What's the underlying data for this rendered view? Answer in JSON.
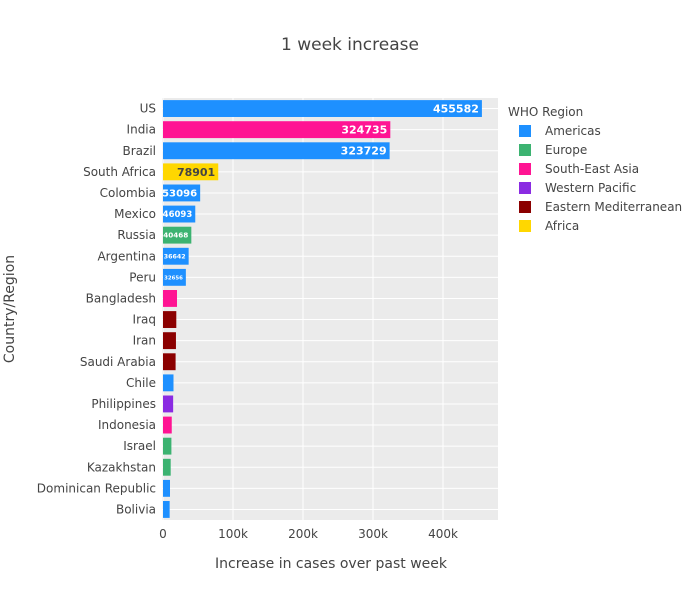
{
  "chart_data": {
    "type": "bar",
    "orientation": "horizontal",
    "title": "1 week increase",
    "xlabel": "Increase in cases over past week",
    "ylabel": "Country/Region",
    "xlim": [
      0,
      480000
    ],
    "xticks": [
      0,
      100000,
      200000,
      300000,
      400000
    ],
    "xtick_labels": [
      "0",
      "100k",
      "200k",
      "300k",
      "400k"
    ],
    "grid": true,
    "legend": {
      "title": "WHO Region",
      "placement": "right",
      "items": [
        {
          "name": "Americas",
          "color": "#1e90ff"
        },
        {
          "name": "Europe",
          "color": "#3cb371"
        },
        {
          "name": "South-East Asia",
          "color": "#ff1493"
        },
        {
          "name": "Western Pacific",
          "color": "#8a2be2"
        },
        {
          "name": "Eastern Mediterranean",
          "color": "#8b0000"
        },
        {
          "name": "Africa",
          "color": "#ffd700"
        }
      ]
    },
    "bars": [
      {
        "country": "US",
        "value": 455582,
        "region": "Americas",
        "label": "455582"
      },
      {
        "country": "India",
        "value": 324735,
        "region": "South-East Asia",
        "label": "324735"
      },
      {
        "country": "Brazil",
        "value": 323729,
        "region": "Americas",
        "label": "323729"
      },
      {
        "country": "South Africa",
        "value": 78901,
        "region": "Africa",
        "label": "78901"
      },
      {
        "country": "Colombia",
        "value": 53096,
        "region": "Americas",
        "label": "53096"
      },
      {
        "country": "Mexico",
        "value": 46093,
        "region": "Americas",
        "label": "46093"
      },
      {
        "country": "Russia",
        "value": 40468,
        "region": "Europe",
        "label": "40468"
      },
      {
        "country": "Argentina",
        "value": 36642,
        "region": "Americas",
        "label": "36642"
      },
      {
        "country": "Peru",
        "value": 32656,
        "region": "Americas",
        "label": "32656"
      },
      {
        "country": "Bangladesh",
        "value": 20000,
        "region": "South-East Asia",
        "label": ""
      },
      {
        "country": "Iraq",
        "value": 19000,
        "region": "Eastern Mediterranean",
        "label": ""
      },
      {
        "country": "Iran",
        "value": 18500,
        "region": "Eastern Mediterranean",
        "label": ""
      },
      {
        "country": "Saudi Arabia",
        "value": 18000,
        "region": "Eastern Mediterranean",
        "label": ""
      },
      {
        "country": "Chile",
        "value": 15000,
        "region": "Americas",
        "label": ""
      },
      {
        "country": "Philippines",
        "value": 14500,
        "region": "Western Pacific",
        "label": ""
      },
      {
        "country": "Indonesia",
        "value": 12500,
        "region": "South-East Asia",
        "label": ""
      },
      {
        "country": "Israel",
        "value": 12000,
        "region": "Europe",
        "label": ""
      },
      {
        "country": "Kazakhstan",
        "value": 11000,
        "region": "Europe",
        "label": ""
      },
      {
        "country": "Dominican Republic",
        "value": 10000,
        "region": "Americas",
        "label": ""
      },
      {
        "country": "Bolivia",
        "value": 9500,
        "region": "Americas",
        "label": ""
      }
    ]
  }
}
